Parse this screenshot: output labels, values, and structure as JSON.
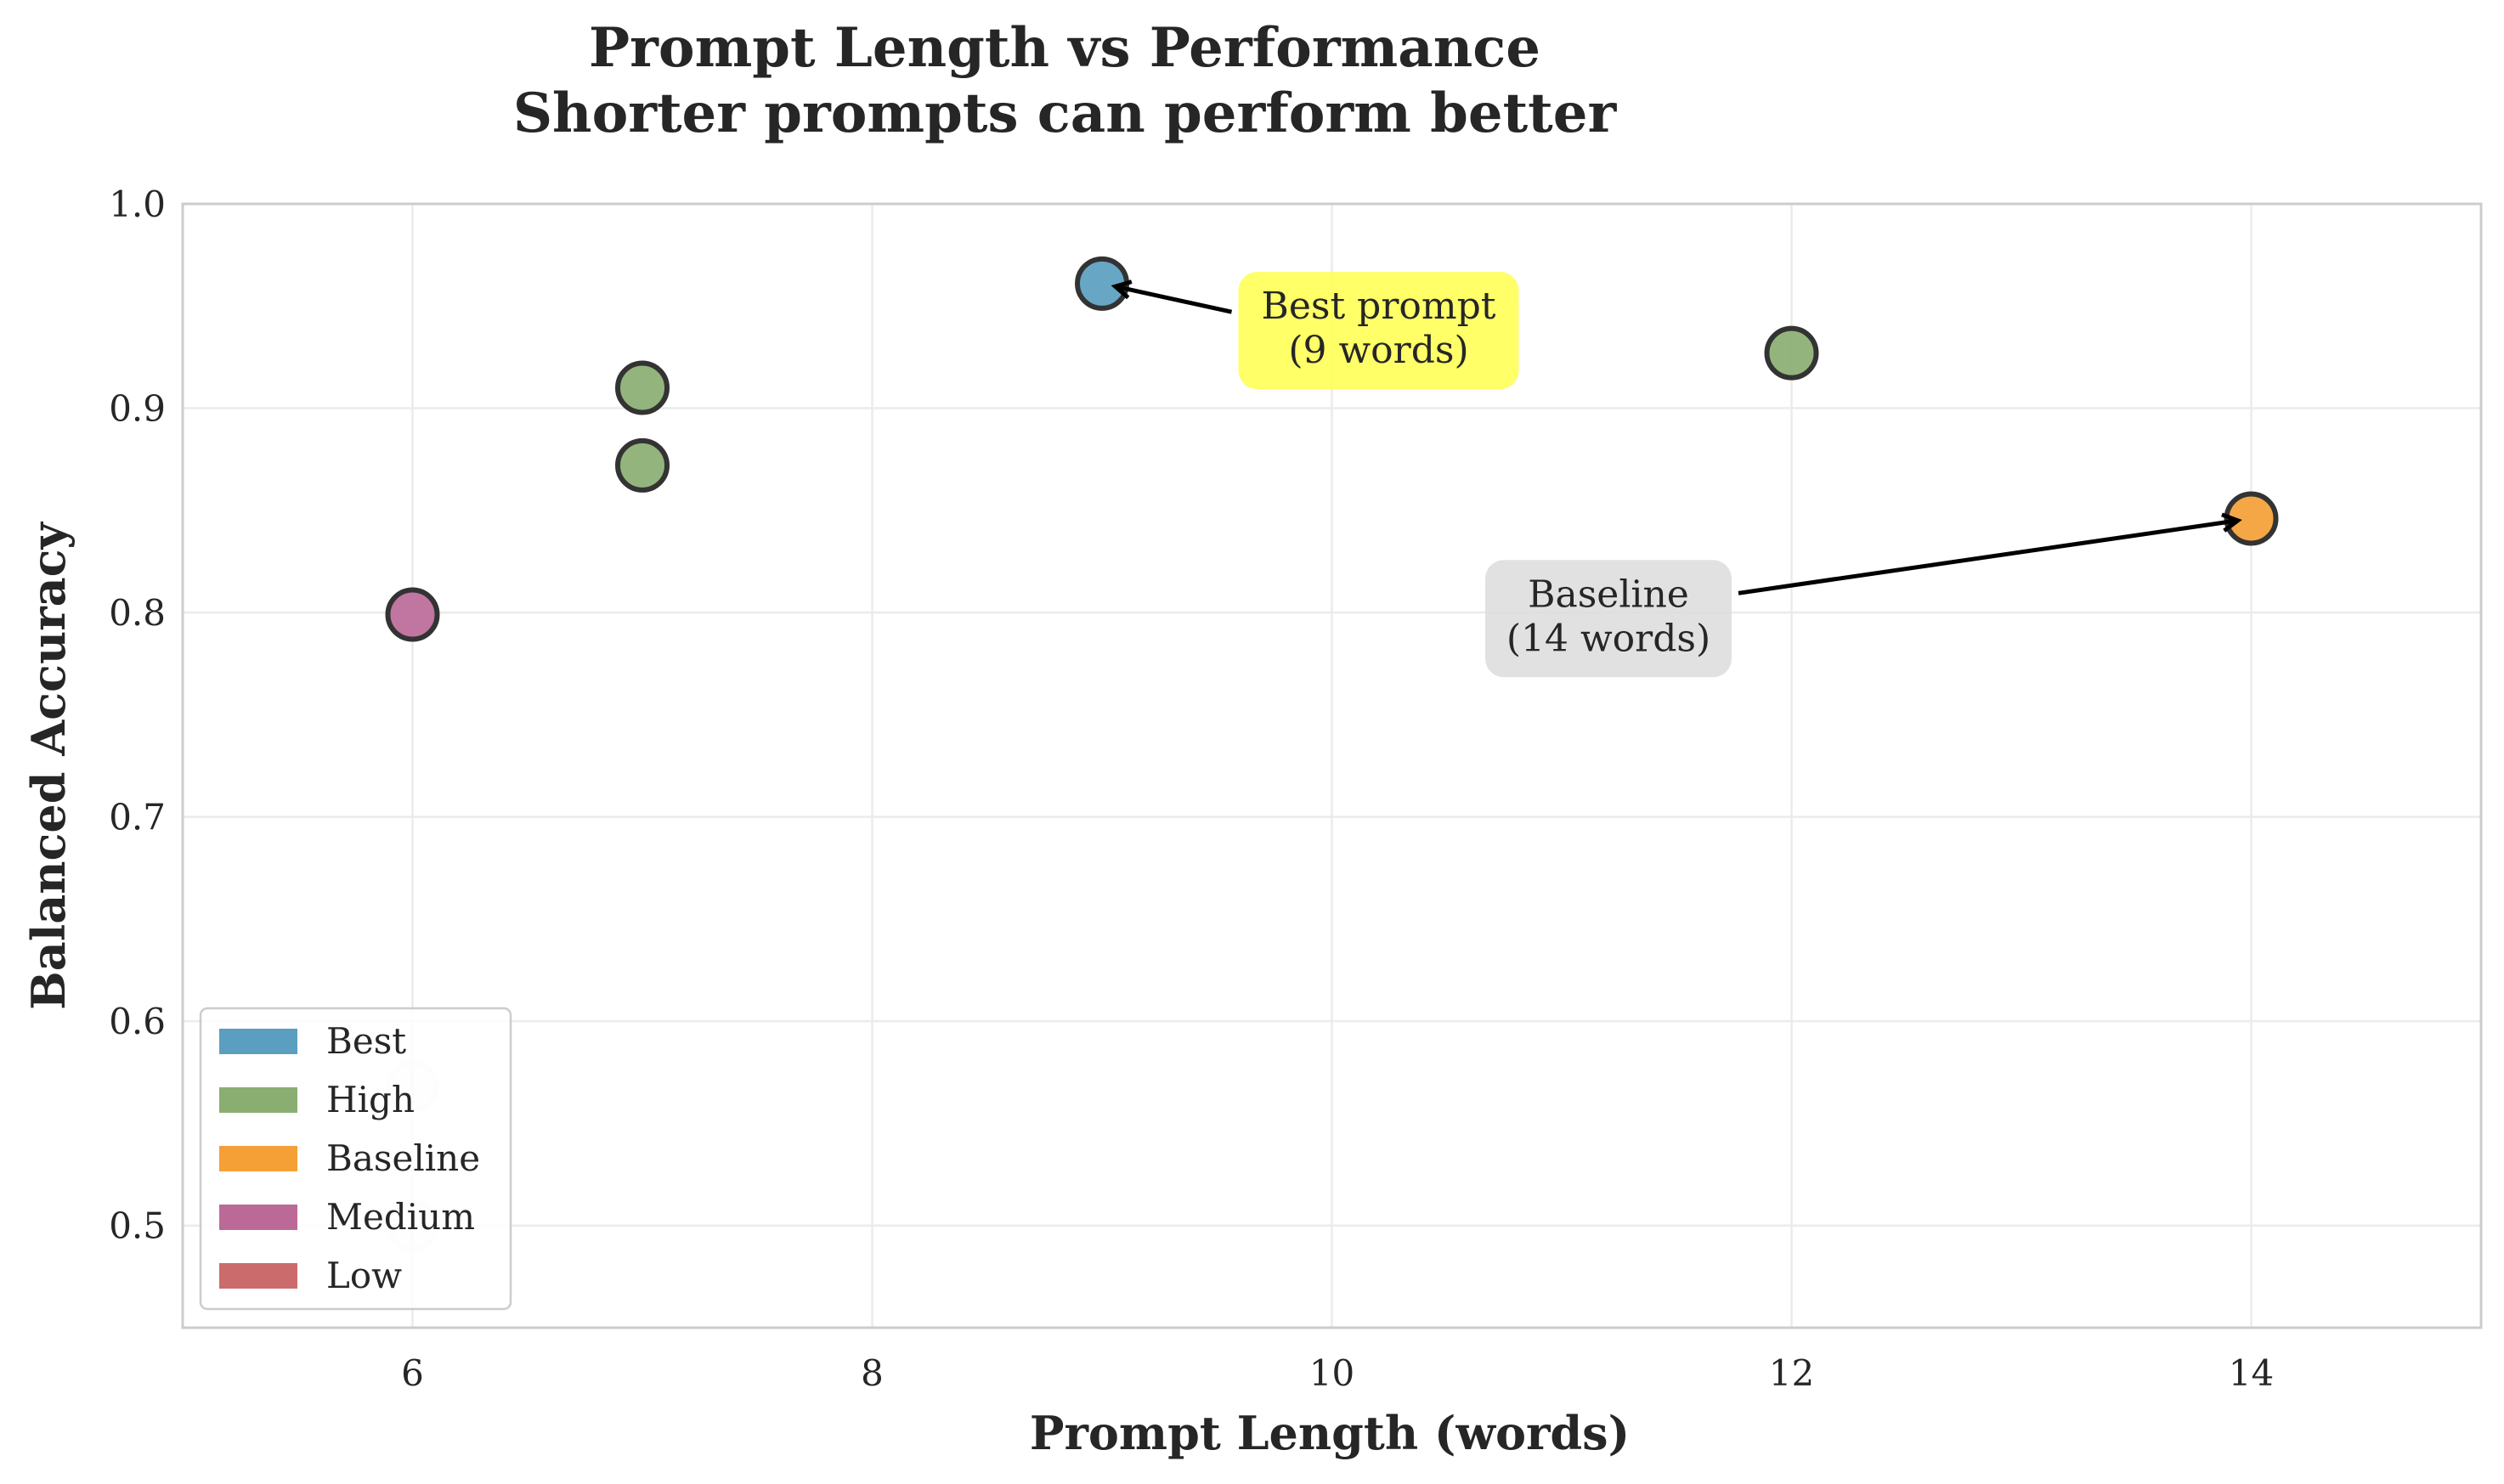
{
  "chart_data": {
    "type": "scatter",
    "title_lines": [
      "Prompt Length vs Performance",
      "Shorter prompts can perform better"
    ],
    "xlabel": "Prompt Length (words)",
    "ylabel": "Balanced Accuracy",
    "xlim": [
      5,
      15
    ],
    "ylim": [
      0.45,
      1.0
    ],
    "xticks": [
      6,
      8,
      10,
      12,
      14
    ],
    "yticks": [
      0.5,
      0.6,
      0.7,
      0.8,
      0.9,
      1.0
    ],
    "grid": true,
    "legend": {
      "placement": "lower-left",
      "entries": [
        {
          "label": "Best",
          "color": "#5a9ec0"
        },
        {
          "label": "High",
          "color": "#8aae72"
        },
        {
          "label": "Baseline",
          "color": "#f4a036"
        },
        {
          "label": "Medium",
          "color": "#bb6a98"
        },
        {
          "label": "Low",
          "color": "#cc6b6b"
        }
      ]
    },
    "points": [
      {
        "x": 9,
        "y": 0.961,
        "category": "Best"
      },
      {
        "x": 7,
        "y": 0.91,
        "category": "High"
      },
      {
        "x": 7,
        "y": 0.872,
        "category": "High"
      },
      {
        "x": 12,
        "y": 0.927,
        "category": "High"
      },
      {
        "x": 14,
        "y": 0.846,
        "category": "Baseline"
      },
      {
        "x": 6,
        "y": 0.799,
        "category": "Medium"
      },
      {
        "x": 6,
        "y": 0.568,
        "category": "Low"
      },
      {
        "x": 6,
        "y": 0.5,
        "category": "Low"
      }
    ],
    "annotations": [
      {
        "lines": [
          "Best prompt",
          "(9 words)"
        ],
        "target": {
          "x": 9,
          "y": 0.961
        },
        "text_at": {
          "x": 10.0,
          "y": 0.938
        },
        "box_color": "#ffff4d"
      },
      {
        "lines": [
          "Baseline",
          "(14 words)"
        ],
        "target": {
          "x": 14,
          "y": 0.846
        },
        "text_at": {
          "x": 11.0,
          "y": 0.797
        },
        "box_color": "#dcdcdc"
      }
    ]
  }
}
